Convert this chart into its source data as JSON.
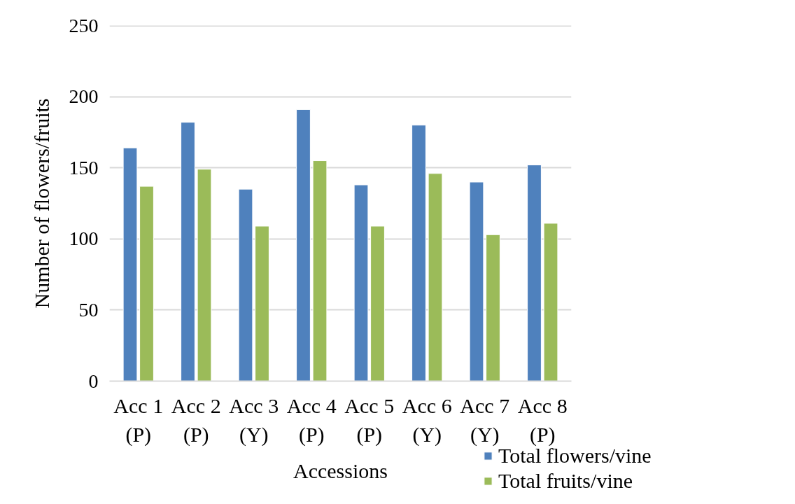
{
  "chart_data": {
    "type": "bar",
    "xlabel": "Accessions",
    "ylabel": "Number of flowers/fruits",
    "categories": [
      "Acc 1\n(P)",
      "Acc 2\n(P)",
      "Acc 3\n(Y)",
      "Acc 4\n(P)",
      "Acc 5\n(P)",
      "Acc 6\n(Y)",
      "Acc 7\n(Y)",
      "Acc 8\n(P)"
    ],
    "series": [
      {
        "name": "Total flowers/vine",
        "color": "#4f81bd",
        "values": [
          164,
          182,
          135,
          191,
          138,
          180,
          140,
          152
        ]
      },
      {
        "name": "Total fruits/vine",
        "color": "#9bbb59",
        "values": [
          137,
          149,
          109,
          155,
          109,
          146,
          103,
          111
        ]
      }
    ],
    "ylim": [
      0,
      250
    ],
    "yticks": [
      0,
      50,
      100,
      150,
      200,
      250
    ],
    "grid": "y",
    "legend": "bottom right"
  }
}
